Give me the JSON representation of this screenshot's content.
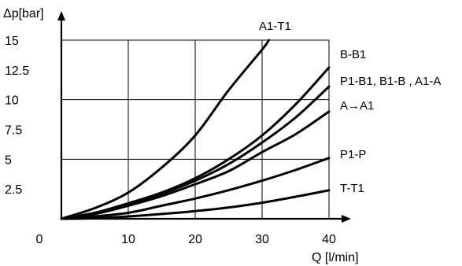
{
  "chart_data": {
    "type": "line",
    "ylabel": "Δp[bar]",
    "xlabel": "Q [l/min]",
    "xlim": [
      0,
      40
    ],
    "ylim": [
      0,
      15
    ],
    "x_ticks": [
      "0",
      "10",
      "20",
      "30",
      "40"
    ],
    "y_ticks": [
      "15",
      "12.5",
      "10",
      "7.5",
      "5",
      "2.5"
    ],
    "grid": true,
    "series": [
      {
        "name": "A1-T1",
        "x": [
          0,
          5,
          10,
          15,
          20,
          25,
          30,
          31
        ],
        "y": [
          0,
          0.9,
          2.2,
          4.3,
          7.0,
          10.8,
          14.2,
          15.0
        ]
      },
      {
        "name": "B-B1",
        "x": [
          0,
          5,
          10,
          15,
          20,
          25,
          30,
          35,
          40
        ],
        "y": [
          0,
          0.5,
          1.3,
          2.2,
          3.4,
          5.0,
          7.0,
          9.6,
          12.7
        ]
      },
      {
        "name": "P1-B1, B1-B , A1-A",
        "x": [
          0,
          5,
          10,
          15,
          20,
          25,
          30,
          35,
          40
        ],
        "y": [
          0,
          0.5,
          1.2,
          2.1,
          3.2,
          4.6,
          6.4,
          8.5,
          11.1
        ]
      },
      {
        "name": "A→A1",
        "x": [
          0,
          5,
          10,
          15,
          20,
          25,
          30,
          35,
          40
        ],
        "y": [
          0,
          0.4,
          1.1,
          1.9,
          2.9,
          4.0,
          5.6,
          7.1,
          9.0
        ]
      },
      {
        "name": "P1-P",
        "x": [
          0,
          5,
          10,
          15,
          20,
          25,
          30,
          35,
          40
        ],
        "y": [
          0,
          0.2,
          0.5,
          1.1,
          1.7,
          2.4,
          3.2,
          4.1,
          5.1
        ]
      },
      {
        "name": "T-T1",
        "x": [
          0,
          5,
          10,
          15,
          20,
          25,
          30,
          35,
          40
        ],
        "y": [
          0,
          0.05,
          0.2,
          0.4,
          0.65,
          0.95,
          1.35,
          1.85,
          2.4
        ]
      }
    ]
  }
}
